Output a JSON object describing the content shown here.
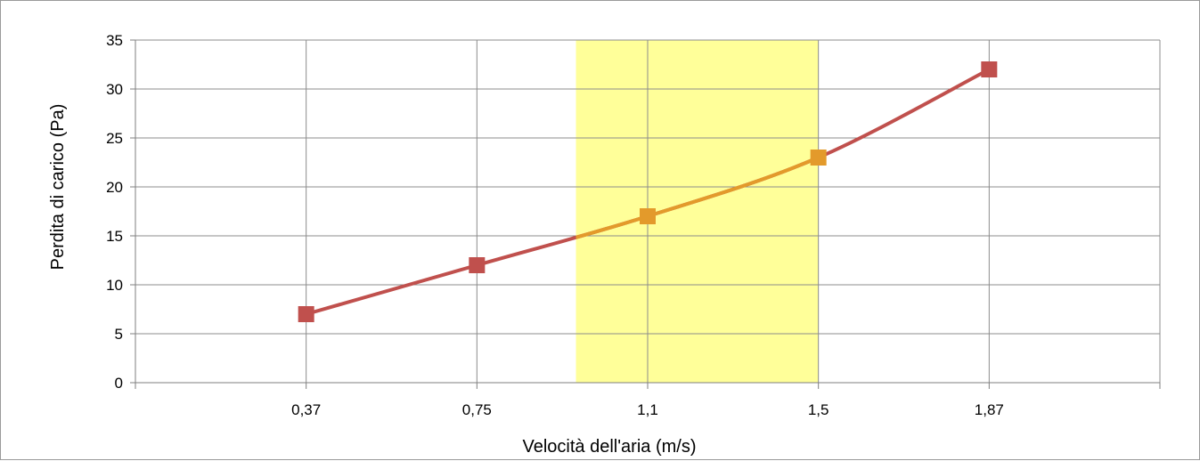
{
  "chart_data": {
    "type": "line",
    "title": "",
    "xlabel": "Velocità dell'aria (m/s)",
    "ylabel": "Perdita di carico (Pa)",
    "categories": [
      "0,37",
      "0,75",
      "1,1",
      "1,5",
      "1,87"
    ],
    "series": [
      {
        "values": [
          7,
          12,
          17,
          23,
          32
        ]
      }
    ],
    "ylim": [
      0,
      35
    ],
    "yticks": [
      0,
      5,
      10,
      15,
      20,
      25,
      30,
      35
    ],
    "grid": true,
    "legend": "none",
    "highlight_band": {
      "from_category_index": 1.58,
      "to_category_index": 3
    },
    "colors": {
      "line": "#c0504d",
      "highlighted_line": "#e39a2b",
      "band": "#ffff99",
      "grid": "#8c8c8c",
      "axis": "#7f7f7f"
    }
  }
}
